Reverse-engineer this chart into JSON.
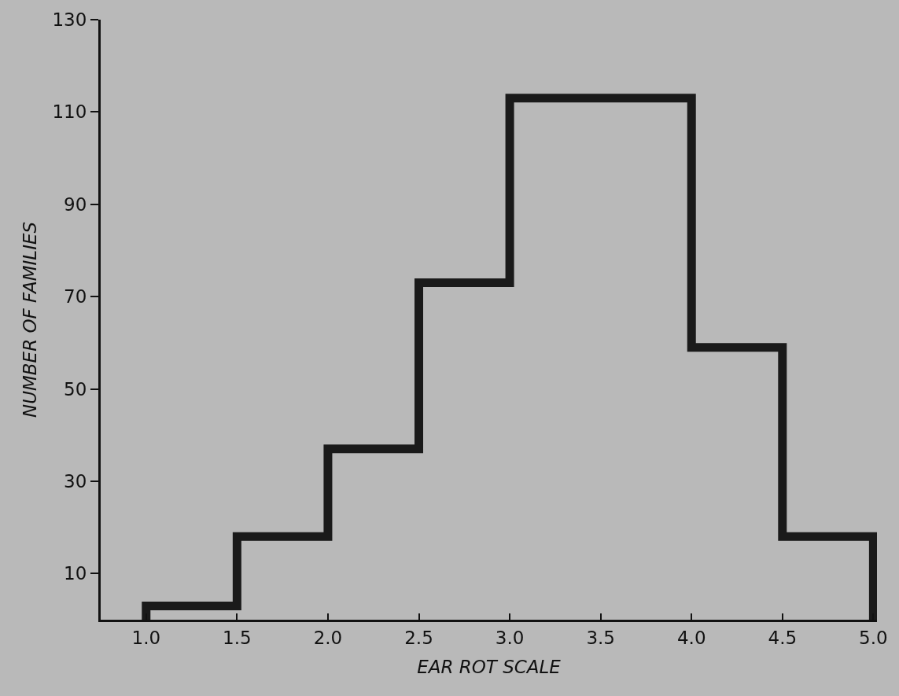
{
  "chart_data": {
    "type": "histogram",
    "xlabel": "EAR ROT SCALE",
    "ylabel": "NUMBER OF FAMILIES",
    "bins": [
      1.0,
      1.5,
      2.0,
      2.5,
      3.0,
      3.5,
      4.0,
      4.5,
      5.0
    ],
    "values": [
      3,
      18,
      37,
      73,
      113,
      113,
      59,
      18
    ],
    "color": "#1a1a1a",
    "xlim": [
      0.75,
      5.02
    ],
    "xticks": [
      {
        "value": 1,
        "label": "1.0"
      },
      1.5,
      {
        "value": 2,
        "label": "2.0"
      },
      2.5,
      {
        "value": 3,
        "label": "3.0"
      },
      3.5,
      {
        "value": 4,
        "label": "4.0"
      },
      4.5,
      {
        "value": 5,
        "label": "5.0"
      }
    ],
    "ylim": [
      0,
      130
    ],
    "yticks": [
      10,
      30,
      50,
      70,
      90,
      110,
      130
    ]
  }
}
